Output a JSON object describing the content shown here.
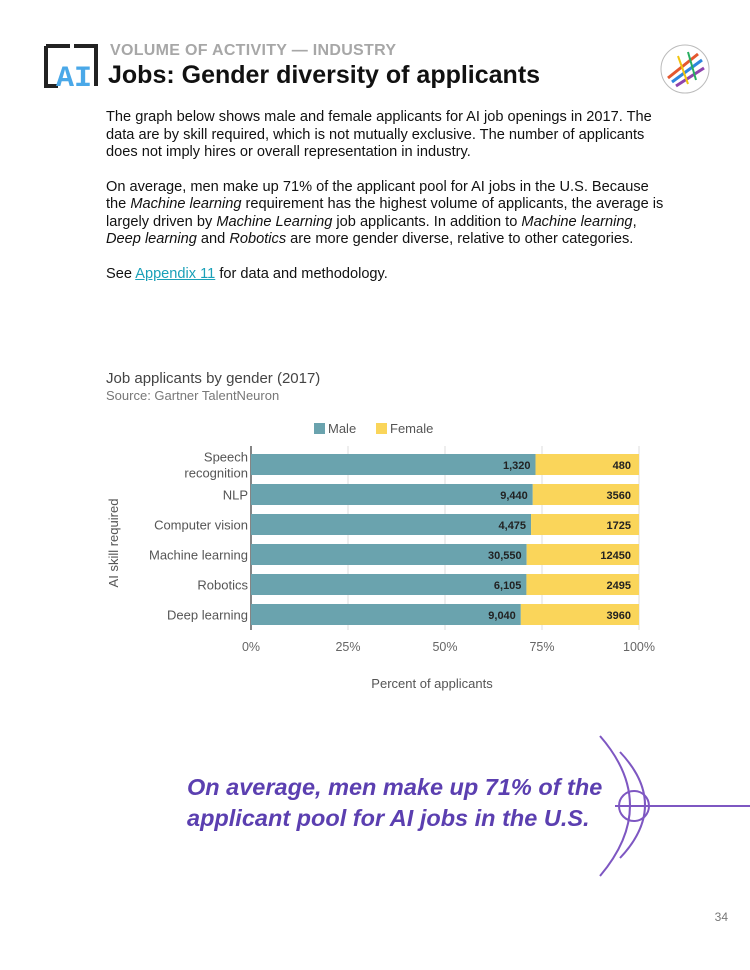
{
  "header": {
    "kicker": "VOLUME OF ACTIVITY — INDUSTRY",
    "title": "Jobs: Gender diversity of applicants",
    "logo_text": "AI"
  },
  "body": {
    "p1": "The graph below shows male and female applicants for AI job openings in 2017. The data are by skill required, which is not mutually exclusive. The number of applicants does not imply hires or overall representation in industry.",
    "p2": {
      "t1": "On average, men make up 71% of the applicant pool for AI jobs in the U.S. Because the ",
      "i1": "Machine learning",
      "t2": " requirement has the highest volume of applicants, the average is largely driven by ",
      "i2": "Machine Learning",
      "t3": " job applicants. In addition to ",
      "i3": "Machine learning",
      "t4": ", ",
      "i4": "Deep learning",
      "t5": " and ",
      "i5": "Robotics",
      "t6": " are more gender diverse, relative to other categories."
    },
    "p3": {
      "before": "See ",
      "link": "Appendix 11",
      "after": " for data and methodology."
    }
  },
  "chart_data": {
    "type": "bar",
    "orientation": "horizontal",
    "stacked": "percent",
    "title": "Job applicants by gender (2017)",
    "subtitle": "Source: Gartner TalentNeuron",
    "xlabel": "Percent of applicants",
    "ylabel": "AI skill required",
    "xlim": [
      0,
      100
    ],
    "xticks": [
      "0%",
      "25%",
      "50%",
      "75%",
      "100%"
    ],
    "categories": [
      "Speech recognition",
      "NLP",
      "Computer vision",
      "Machine learning",
      "Robotics",
      "Deep learning"
    ],
    "series": [
      {
        "name": "Male",
        "values": [
          1320,
          9440,
          4475,
          30550,
          6105,
          9040
        ],
        "labels": [
          "1,320",
          "9,440",
          "4,475",
          "30,550",
          "6,105",
          "9,040"
        ],
        "color": "#6aa3ae"
      },
      {
        "name": "Female",
        "values": [
          480,
          3560,
          1725,
          12450,
          2495,
          3960
        ],
        "labels": [
          "480",
          "3560",
          "1725",
          "12450",
          "2495",
          "3960"
        ],
        "color": "#fad55a"
      }
    ],
    "legend_position": "top",
    "grid": true
  },
  "quote": "On average, men make up 71% of the applicant pool for AI jobs in the U.S.",
  "page_number": "34",
  "colors": {
    "accent": "#5b3fb0",
    "link": "#1aa0b8",
    "male": "#6aa3ae",
    "female": "#fad55a"
  }
}
